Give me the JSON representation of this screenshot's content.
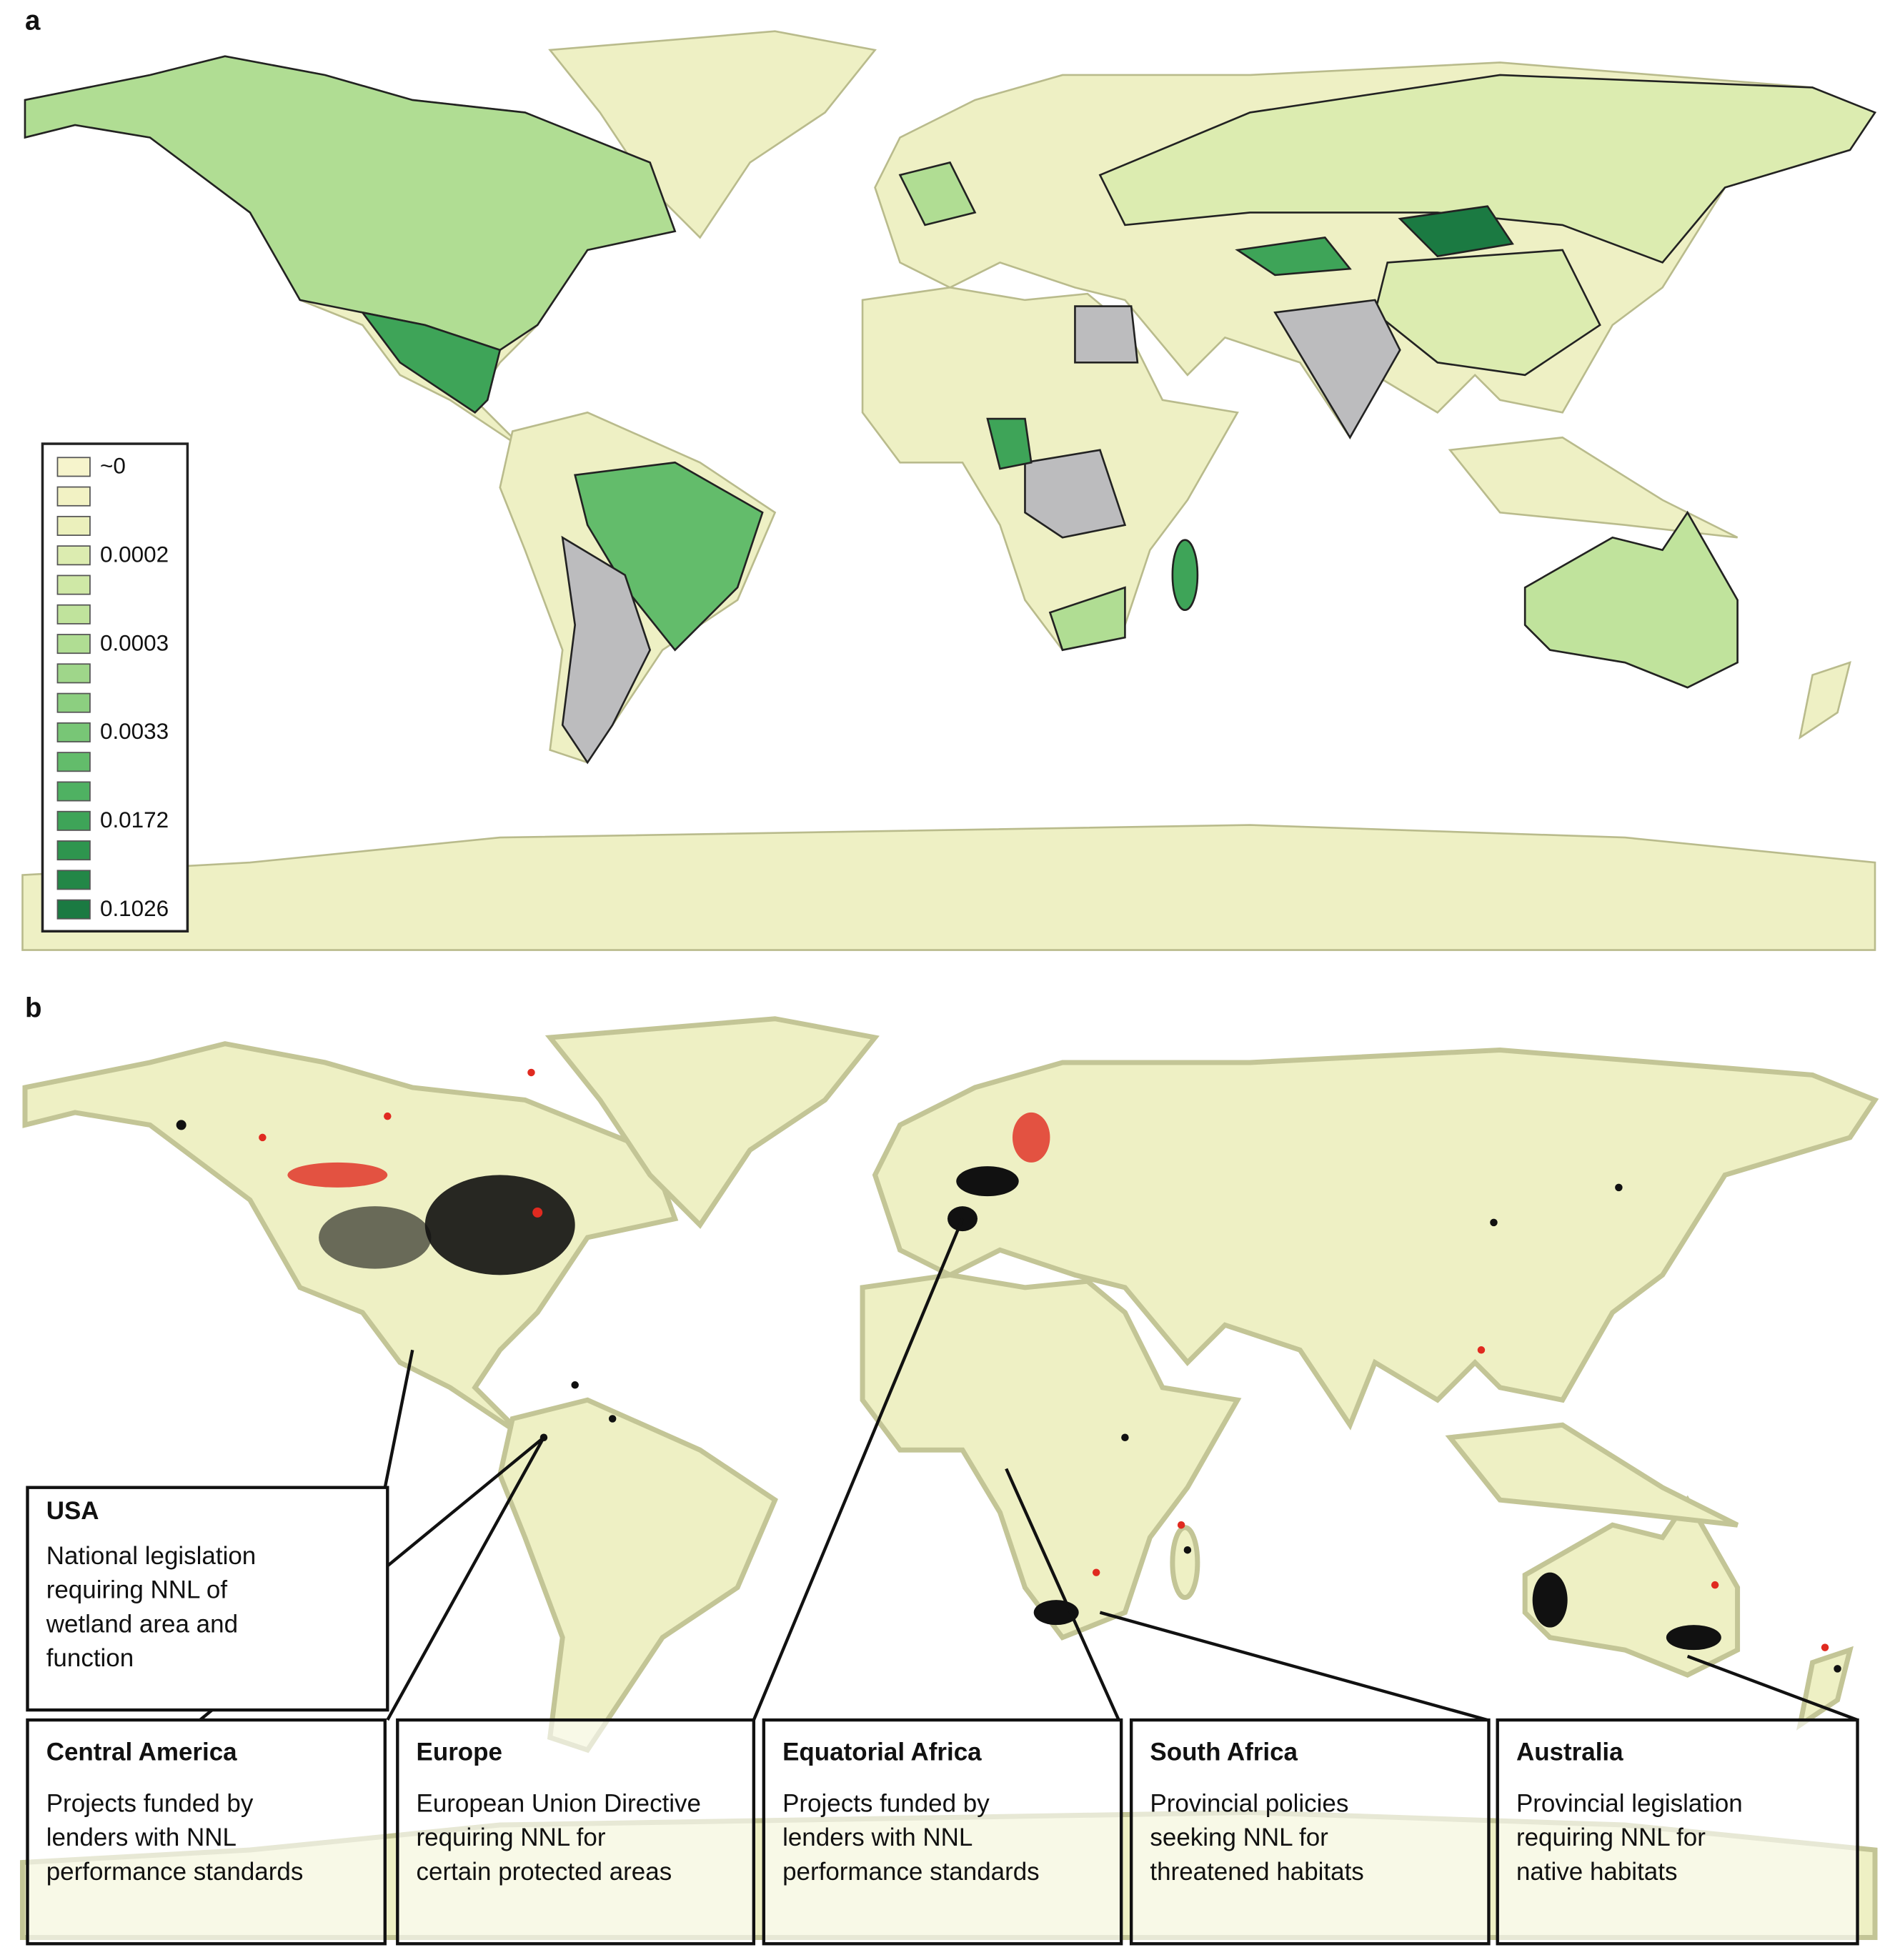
{
  "panel_a": {
    "label": "a",
    "legend": {
      "items": [
        {
          "label": "~0",
          "color": "#f6f4cc"
        },
        {
          "label": null,
          "color": "#f2f2c4"
        },
        {
          "label": null,
          "color": "#ebf0bc"
        },
        {
          "label": "0.0002",
          "color": "#dcecb0"
        },
        {
          "label": null,
          "color": "#cfe8a6"
        },
        {
          "label": null,
          "color": "#c0e39c"
        },
        {
          "label": "0.0003",
          "color": "#b0dd93"
        },
        {
          "label": null,
          "color": "#9fd68a"
        },
        {
          "label": null,
          "color": "#8ccf80"
        },
        {
          "label": "0.0033",
          "color": "#78c676"
        },
        {
          "label": null,
          "color": "#63bc6b"
        },
        {
          "label": null,
          "color": "#4fb162"
        },
        {
          "label": "0.0172",
          "color": "#3ea458"
        },
        {
          "label": null,
          "color": "#2e954e"
        },
        {
          "label": null,
          "color": "#238747"
        },
        {
          "label": "0.1026",
          "color": "#1b7a42"
        }
      ]
    }
  },
  "panel_b": {
    "label": "b",
    "callouts": [
      {
        "title": "USA",
        "lines": [
          "National legislation",
          "requiring NNL of",
          "wetland area and",
          "function"
        ]
      },
      {
        "title": "Central America",
        "lines": [
          "Projects funded by",
          "lenders with NNL",
          "performance standards"
        ]
      },
      {
        "title": "Europe",
        "lines": [
          "European Union Directive",
          "requiring NNL for",
          "certain protected areas"
        ]
      },
      {
        "title": "Equatorial Africa",
        "lines": [
          "Projects funded by",
          "lenders with NNL",
          "performance standards"
        ]
      },
      {
        "title": "South Africa",
        "lines": [
          "Provincial policies",
          "seeking NNL for",
          "threatened habitats"
        ]
      },
      {
        "title": "Australia",
        "lines": [
          "Provincial legislation",
          "requiring NNL for",
          "native habitats"
        ]
      }
    ]
  }
}
